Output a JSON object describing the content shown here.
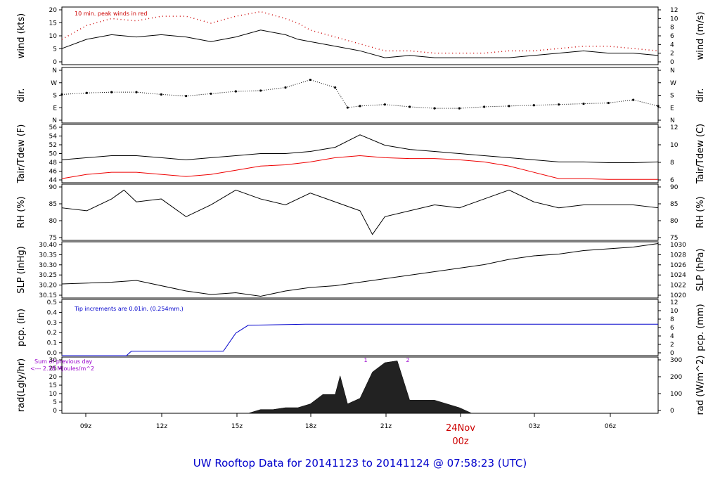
{
  "chart_data": {
    "type": "line",
    "title": "UW Rooftop Data for 20141123  to  20141124 @ 07:58:23  (UTC)",
    "x_axis": {
      "tick_labels": [
        "09z",
        "12z",
        "15z",
        "18z",
        "21z",
        "00z",
        "03z",
        "06z"
      ],
      "date_label": "24Nov",
      "range_hours": [
        0,
        24
      ]
    },
    "panels": [
      {
        "id": "wind",
        "left_label": "wind (kts)",
        "right_label": "wind (m/s)",
        "left_ticks": [
          "0",
          "5",
          "10",
          "15",
          "20"
        ],
        "right_ticks": [
          "0",
          "2",
          "4",
          "6",
          "8",
          "10",
          "12"
        ],
        "ylim": [
          -1,
          24
        ],
        "annotation": "10 min. peak winds in red",
        "series": [
          {
            "color": "#000000",
            "x": [
              0,
              1,
              2,
              3,
              4,
              5,
              6,
              7,
              8,
              9,
              9.5,
              10,
              11,
              12,
              13,
              14,
              15,
              16,
              17,
              18,
              19,
              20,
              21,
              22,
              23,
              24
            ],
            "y": [
              6,
              10,
              12,
              11,
              12,
              11,
              9,
              11,
              14,
              12,
              10,
              9,
              7,
              5,
              2,
              3,
              2,
              2,
              2,
              2,
              3,
              4,
              5,
              4,
              4,
              3
            ]
          },
          {
            "color": "#cc0000",
            "x": [
              0,
              1,
              2,
              3,
              4,
              5,
              6,
              7,
              8,
              9,
              9.5,
              10,
              11,
              12,
              13,
              14,
              15,
              16,
              17,
              18,
              19,
              20,
              21,
              22,
              23,
              24
            ],
            "y": [
              10,
              16,
              19,
              18,
              20,
              20,
              17,
              20,
              22,
              19,
              17,
              14,
              11,
              8,
              5,
              5,
              4,
              4,
              4,
              5,
              5,
              6,
              7,
              7,
              6,
              5
            ]
          }
        ]
      },
      {
        "id": "dir",
        "left_label": "dir.",
        "right_label": "dir.",
        "left_ticks": [
          "N",
          "E",
          "S",
          "W",
          "N"
        ],
        "right_ticks": [
          "N",
          "E",
          "S",
          "W",
          "N"
        ],
        "ylim": [
          0,
          360
        ],
        "series": [
          {
            "color": "#000000",
            "x": [
              0,
              1,
              2,
              3,
              4,
              5,
              6,
              7,
              8,
              9,
              10,
              11,
              11.5,
              12,
              13,
              14,
              15,
              16,
              17,
              18,
              19,
              20,
              21,
              22,
              23,
              24
            ],
            "y": [
              185,
              195,
              200,
              200,
              185,
              175,
              190,
              205,
              210,
              230,
              280,
              230,
              100,
              110,
              120,
              105,
              95,
              95,
              105,
              110,
              115,
              120,
              125,
              130,
              150,
              110
            ]
          }
        ]
      },
      {
        "id": "temp",
        "left_label": "Tair/Tdew (F)",
        "right_label": "Tair/Tdew (C)",
        "left_ticks": [
          "44",
          "46",
          "48",
          "50",
          "52",
          "54",
          "56"
        ],
        "right_ticks": [
          "6",
          "8",
          "10",
          "12"
        ],
        "ylim": [
          42.5,
          56.5
        ],
        "series": [
          {
            "name": "Tair",
            "color": "#000000",
            "x": [
              0,
              1,
              2,
              3,
              4,
              5,
              6,
              7,
              8,
              9,
              10,
              11,
              12,
              13,
              14,
              15,
              16,
              17,
              18,
              19,
              20,
              21,
              22,
              23,
              24
            ],
            "y": [
              48,
              48.5,
              49,
              49,
              48.5,
              48,
              48.5,
              49,
              49.5,
              49.5,
              50,
              51,
              54,
              51.5,
              50.5,
              50,
              49.5,
              49,
              48.5,
              48,
              47.5,
              47.5,
              47.3,
              47.3,
              47.5
            ]
          },
          {
            "name": "Tdew",
            "color": "#ee0000",
            "x": [
              0,
              1,
              2,
              3,
              4,
              5,
              6,
              7,
              8,
              9,
              10,
              11,
              12,
              13,
              14,
              15,
              16,
              17,
              18,
              19,
              20,
              21,
              22,
              23,
              24
            ],
            "y": [
              43.5,
              44.5,
              45,
              45,
              44.5,
              44,
              44.5,
              45.5,
              46.5,
              46.8,
              47.5,
              48.5,
              49,
              48.5,
              48.3,
              48.3,
              48,
              47.5,
              46.5,
              45,
              43.5,
              43.5,
              43.3,
              43.3,
              43.3
            ]
          }
        ]
      },
      {
        "id": "rh",
        "left_label": "RH (%)",
        "right_label": "RH (%)",
        "left_ticks": [
          "75",
          "80",
          "85",
          "90"
        ],
        "right_ticks": [
          "75",
          "80",
          "85",
          "90"
        ],
        "ylim": [
          74,
          93
        ],
        "series": [
          {
            "color": "#000000",
            "x": [
              0,
              1,
              2,
              2.5,
              3,
              4,
              5,
              6,
              7,
              8,
              9,
              10,
              11,
              12,
              12.5,
              13,
              14,
              15,
              16,
              17,
              18,
              19,
              20,
              21,
              22,
              23,
              24
            ],
            "y": [
              85,
              84,
              88,
              91,
              87,
              88,
              82,
              86,
              91,
              88,
              86,
              90,
              87,
              84,
              76,
              82,
              84,
              86,
              85,
              88,
              91,
              87,
              85,
              86,
              86,
              86,
              85
            ]
          }
        ]
      },
      {
        "id": "slp",
        "left_label": "SLP (inHg)",
        "right_label": "SLP (hPa)",
        "left_ticks": [
          "30.15",
          "30.20",
          "30.25",
          "30.30",
          "30.35",
          "30.40"
        ],
        "right_ticks": [
          "1020",
          "1022",
          "1024",
          "1026",
          "1028",
          "1030"
        ],
        "ylim": [
          30.11,
          30.43
        ],
        "series": [
          {
            "color": "#000000",
            "x": [
              0,
              2,
              3,
              5,
              6,
              7,
              8,
              9,
              10,
              11,
              12,
              13,
              14,
              15,
              16,
              17,
              18,
              19,
              20,
              21,
              22,
              23,
              24
            ],
            "y": [
              30.19,
              30.2,
              30.21,
              30.15,
              30.13,
              30.14,
              30.12,
              30.15,
              30.17,
              30.18,
              30.2,
              30.22,
              30.24,
              30.26,
              30.28,
              30.3,
              30.33,
              30.35,
              30.36,
              30.38,
              30.39,
              30.4,
              30.42
            ]
          }
        ]
      },
      {
        "id": "pcp",
        "left_label": "pcp. (in)",
        "right_label": "pcp. (mm)",
        "left_ticks": [
          "0.0",
          "0.1",
          "0.2",
          "0.3",
          "0.4",
          "0.5"
        ],
        "right_ticks": [
          "0",
          "2",
          "4",
          "6",
          "8",
          "10",
          "12"
        ],
        "ylim": [
          0,
          0.5
        ],
        "annotation": "Tip increments are 0.01in. (0.254mm.)",
        "series": [
          {
            "color": "#0000cc",
            "x": [
              0,
              2.6,
              2.7,
              2.8,
              6.5,
              7.0,
              7.5,
              9.8,
              24
            ],
            "y": [
              0,
              0,
              0.02,
              0.04,
              0.04,
              0.2,
              0.27,
              0.28,
              0.28
            ]
          }
        ]
      },
      {
        "id": "rad",
        "left_label": "rad(Lgly/hr)",
        "right_label": "rad (W/m^2)",
        "left_ticks": [
          "0",
          "5",
          "10",
          "15",
          "20",
          "25",
          "30"
        ],
        "right_ticks": [
          "0",
          "100",
          "200",
          "300"
        ],
        "ylim": [
          0,
          30
        ],
        "annotation_1": "Sum of previous day",
        "annotation_2": "<--- 2.18 MJoules/m^2",
        "markers": [
          "1",
          "2"
        ],
        "series": [
          {
            "color": "#000000",
            "x": [
              7.5,
              8,
              8.5,
              9,
              9.5,
              10,
              10.5,
              11,
              11.2,
              11.5,
              12,
              12.5,
              13,
              13.5,
              14,
              15,
              16,
              16.5
            ],
            "y": [
              0,
              2,
              2,
              3,
              3,
              5,
              10,
              10,
              20,
              5,
              8,
              22,
              27,
              28,
              7,
              7,
              3,
              0
            ]
          }
        ]
      }
    ]
  }
}
